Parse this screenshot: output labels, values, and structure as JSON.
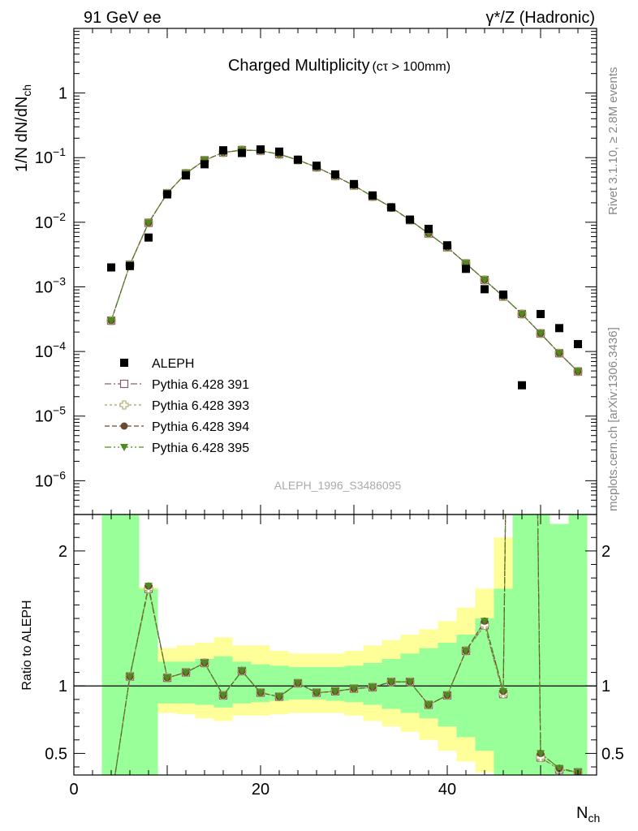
{
  "header": {
    "left": "91 GeV ee",
    "right": "γ*/Z (Hadronic)"
  },
  "side_text": {
    "rivet": "Rivet 3.1.10, ≥ 2.8M events",
    "mcplots": "mcplots.cern.ch [arXiv:1306.3436]"
  },
  "analysis_id": "ALEPH_1996_S3486095",
  "chart_data": [
    {
      "type": "scatter",
      "panel": "main",
      "title_main": "Charged Multiplicity",
      "title_sub": "(cτ > 100mm)",
      "ylabel": "1/N dN/dN",
      "ylabel_sub": "ch",
      "yscale": "log",
      "xlim": [
        0,
        56
      ],
      "ylim": [
        3e-07,
        10
      ],
      "ytick_labels": [
        {
          "value": 1,
          "label": "1"
        },
        {
          "value": 0.1,
          "base": "10",
          "exp": "−1"
        },
        {
          "value": 0.01,
          "base": "10",
          "exp": "−2"
        },
        {
          "value": 0.001,
          "base": "10",
          "exp": "−3"
        },
        {
          "value": 0.0001,
          "base": "10",
          "exp": "−4"
        },
        {
          "value": 1e-05,
          "base": "10",
          "exp": "−5"
        },
        {
          "value": 1e-06,
          "base": "10",
          "exp": "−6"
        }
      ],
      "legend_position": "lower-left",
      "data": {
        "name": "ALEPH",
        "color": "#000000",
        "x": [
          4,
          6,
          8,
          10,
          12,
          14,
          16,
          18,
          20,
          22,
          24,
          26,
          28,
          30,
          32,
          34,
          36,
          38,
          40,
          42,
          44,
          46,
          48,
          50,
          52,
          54
        ],
        "y": [
          0.002,
          0.0021,
          0.0058,
          0.027,
          0.053,
          0.079,
          0.13,
          0.118,
          0.134,
          0.124,
          0.093,
          0.075,
          0.055,
          0.039,
          0.026,
          0.017,
          0.011,
          0.0079,
          0.0044,
          0.0019,
          0.00092,
          0.00076,
          3e-05,
          0.00038,
          0.00023,
          0.00013
        ]
      },
      "series": [
        {
          "name": "Pythia 6.428 391",
          "color": "#8a5a6e",
          "marker": "open-square",
          "dash": "8,3,2,3"
        },
        {
          "name": "Pythia 6.428 393",
          "color": "#a5a561",
          "marker": "open-cross",
          "dash": "3,3"
        },
        {
          "name": "Pythia 6.428 394",
          "color": "#6b4a2e",
          "marker": "filled-circle",
          "dash": "6,3"
        },
        {
          "name": "Pythia 6.428 395",
          "color": "#4f8a1f",
          "marker": "filled-triangle-down",
          "dash": "8,3,2,3,2,3"
        }
      ],
      "mc_x": [
        4,
        6,
        8,
        10,
        12,
        14,
        16,
        18,
        20,
        22,
        24,
        26,
        28,
        30,
        32,
        34,
        36,
        38,
        40,
        42,
        44,
        46,
        48,
        50,
        52,
        54
      ],
      "mc_y": [
        0.0003,
        0.0022,
        0.0098,
        0.028,
        0.057,
        0.091,
        0.12,
        0.131,
        0.128,
        0.113,
        0.092,
        0.071,
        0.052,
        0.037,
        0.025,
        0.017,
        0.0108,
        0.0067,
        0.0041,
        0.0023,
        0.00128,
        0.00071,
        0.00038,
        0.00019,
        9.4e-05,
        4.9e-05
      ]
    },
    {
      "type": "scatter",
      "panel": "ratio",
      "ylabel": "Ratio to ALEPH",
      "xlabel": "N",
      "xlabel_sub": "ch",
      "xlim": [
        0,
        56
      ],
      "ylim": [
        0.34,
        2.27
      ],
      "yticks": [
        0.5,
        1,
        2
      ],
      "ytick_labels": [
        "0.5",
        "1",
        "2"
      ],
      "xticks": [
        0,
        20,
        40
      ],
      "xtick_labels": [
        "0",
        "20",
        "40"
      ],
      "bands": {
        "edges": [
          3,
          5,
          7,
          9,
          11,
          13,
          15,
          17,
          19,
          21,
          23,
          25,
          27,
          29,
          31,
          33,
          35,
          37,
          39,
          41,
          43,
          45,
          47,
          49,
          51,
          53,
          55
        ],
        "yellow_low": [
          0.0,
          0.0,
          0.6,
          0.8,
          0.79,
          0.76,
          0.74,
          0.78,
          0.78,
          0.79,
          0.8,
          0.8,
          0.8,
          0.78,
          0.74,
          0.7,
          0.66,
          0.6,
          0.52,
          0.44,
          0.36,
          0.0,
          0.0,
          0.0,
          0.0,
          0.0
        ],
        "yellow_high": [
          3.0,
          2.24,
          1.73,
          1.28,
          1.3,
          1.32,
          1.36,
          1.3,
          1.3,
          1.26,
          1.24,
          1.24,
          1.24,
          1.26,
          1.3,
          1.34,
          1.38,
          1.42,
          1.48,
          1.58,
          1.72,
          2.1,
          3.0,
          3.0,
          2.2,
          3.0
        ],
        "green_low": [
          0.0,
          0.0,
          0.0,
          0.87,
          0.87,
          0.86,
          0.84,
          0.87,
          0.88,
          0.89,
          0.9,
          0.9,
          0.89,
          0.88,
          0.86,
          0.83,
          0.8,
          0.76,
          0.7,
          0.62,
          0.52,
          0.0,
          0.0,
          0.0,
          0.0,
          0.0
        ],
        "green_high": [
          3.0,
          3.0,
          1.72,
          1.18,
          1.18,
          1.2,
          1.22,
          1.18,
          1.16,
          1.15,
          1.14,
          1.14,
          1.14,
          1.15,
          1.17,
          1.2,
          1.24,
          1.28,
          1.32,
          1.38,
          1.5,
          1.72,
          3.0,
          3.0,
          2.2,
          3.0
        ]
      },
      "ratio_x": [
        4,
        6,
        8,
        10,
        12,
        14,
        16,
        18,
        20,
        22,
        24,
        26,
        28,
        30,
        32,
        34,
        36,
        38,
        40,
        42,
        44,
        46,
        48,
        50,
        52,
        54
      ],
      "ratio_y": [
        0.15,
        1.07,
        1.74,
        1.06,
        1.1,
        1.17,
        0.93,
        1.11,
        0.95,
        0.92,
        1.02,
        0.95,
        0.96,
        0.98,
        0.99,
        1.03,
        1.03,
        0.86,
        0.93,
        1.26,
        1.48,
        0.96,
        12.0,
        0.5,
        0.39,
        0.36
      ],
      "ratio_y_alt": [
        0.15,
        1.07,
        1.72,
        1.06,
        1.1,
        1.17,
        0.93,
        1.11,
        0.95,
        0.92,
        1.02,
        0.95,
        0.96,
        0.98,
        0.99,
        1.03,
        1.03,
        0.86,
        0.93,
        1.26,
        1.45,
        0.94,
        12.0,
        0.47,
        0.38,
        0.36
      ]
    }
  ]
}
